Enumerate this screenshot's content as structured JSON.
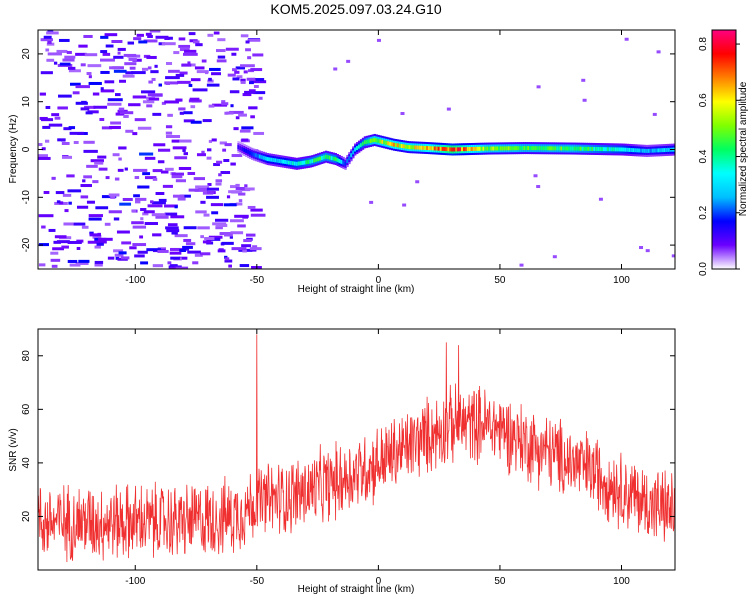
{
  "title": "KOM5.2025.097.03.24.G10",
  "chart_data": [
    {
      "type": "heatmap",
      "xlabel": "Height of straight line (km)",
      "ylabel": "Frequency (Hz)",
      "xlim": [
        -140,
        122
      ],
      "ylim": [
        -25,
        25
      ],
      "xticks": [
        -100,
        -50,
        0,
        50,
        100
      ],
      "yticks": [
        -20,
        -10,
        0,
        10,
        20
      ],
      "colorbar": {
        "label": "Normalized spectral amplitude",
        "range": [
          0.0,
          0.85
        ],
        "ticks": [
          "0.0",
          "0.2",
          "0.4",
          "0.6",
          "0.8"
        ],
        "colors": [
          "#ffffff",
          "#6b00ff",
          "#0000ff",
          "#00bfff",
          "#00ffff",
          "#00ff60",
          "#80ff00",
          "#ffff00",
          "#ff8000",
          "#ff0000",
          "#ff0080"
        ]
      },
      "ridge": {
        "x": [
          -58,
          -52,
          -46,
          -40,
          -34,
          -28,
          -22,
          -18,
          -14,
          -10,
          -6,
          -2,
          2,
          6,
          12,
          20,
          30,
          45,
          60,
          80,
          100,
          110,
          122
        ],
        "freq": [
          0.5,
          -1,
          -2,
          -2.5,
          -3,
          -2.5,
          -1.5,
          -2,
          -3,
          0,
          1.5,
          2,
          1.5,
          1,
          0.5,
          0.3,
          0,
          0.2,
          0.3,
          0.2,
          0,
          -0.3,
          0
        ],
        "amplitude": [
          0.12,
          0.2,
          0.3,
          0.3,
          0.35,
          0.4,
          0.42,
          0.4,
          0.2,
          0.3,
          0.4,
          0.5,
          0.55,
          0.6,
          0.55,
          0.6,
          0.75,
          0.5,
          0.45,
          0.45,
          0.35,
          0.25,
          0.3
        ]
      },
      "noise_region": {
        "x": [
          -140,
          -55
        ],
        "amplitude": [
          0.05,
          0.2
        ]
      }
    },
    {
      "type": "line",
      "xlabel": "Height of straight line (km)",
      "ylabel": "SNR (v/v)",
      "xlim": [
        -140,
        122
      ],
      "ylim": [
        0,
        90
      ],
      "xticks": [
        -100,
        -50,
        0,
        50,
        100
      ],
      "yticks": [
        20,
        40,
        60,
        80
      ],
      "color": "#f03030",
      "mean_curve": {
        "x": [
          -140,
          -120,
          -100,
          -80,
          -60,
          -50,
          -40,
          -30,
          -20,
          -10,
          0,
          10,
          20,
          30,
          40,
          50,
          60,
          70,
          80,
          90,
          100,
          110,
          122
        ],
        "y": [
          18,
          18,
          18,
          18,
          20,
          25,
          27,
          29,
          32,
          36,
          40,
          45,
          50,
          54,
          55,
          53,
          48,
          44,
          40,
          36,
          30,
          25,
          22
        ]
      },
      "spread": 12,
      "spikes": [
        {
          "x": -50,
          "y": 88
        },
        {
          "x": 28,
          "y": 85
        },
        {
          "x": 33,
          "y": 84
        }
      ]
    }
  ]
}
